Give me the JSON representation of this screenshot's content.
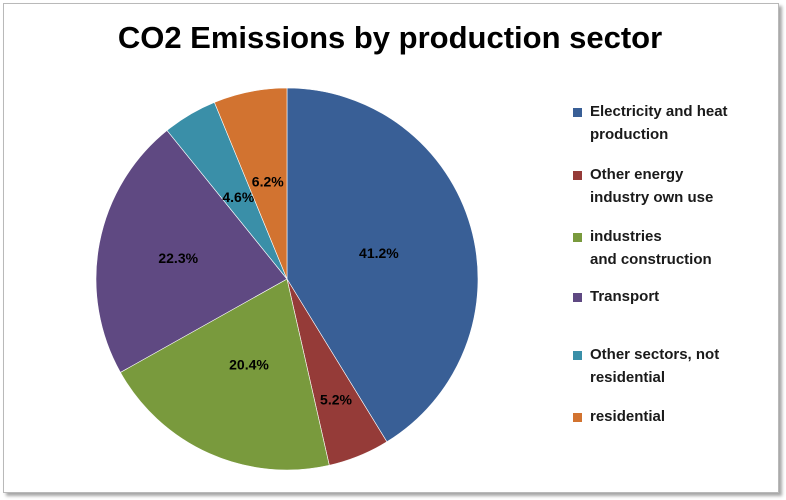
{
  "chart_data": {
    "type": "pie",
    "title": "CO2 Emissions by production sector",
    "categories": [
      "Electricity and heat\nproduction",
      "Other energy\nindustry own use",
      " industries\nand construction",
      "Transport",
      "Other sectors, not\nresidential",
      "residential"
    ],
    "values": [
      41.2,
      5.2,
      20.4,
      22.3,
      4.6,
      6.2
    ],
    "value_labels": [
      "41.2%",
      "5.2%",
      "20.4%",
      "22.3%",
      "4.6%",
      "6.2%"
    ],
    "colors": [
      "#395f96",
      "#953b38",
      "#799a3d",
      "#5f4982",
      "#3a8fa8",
      "#d27330"
    ],
    "start_angle_deg": 90,
    "direction": "clockwise",
    "legend_position": "right"
  }
}
